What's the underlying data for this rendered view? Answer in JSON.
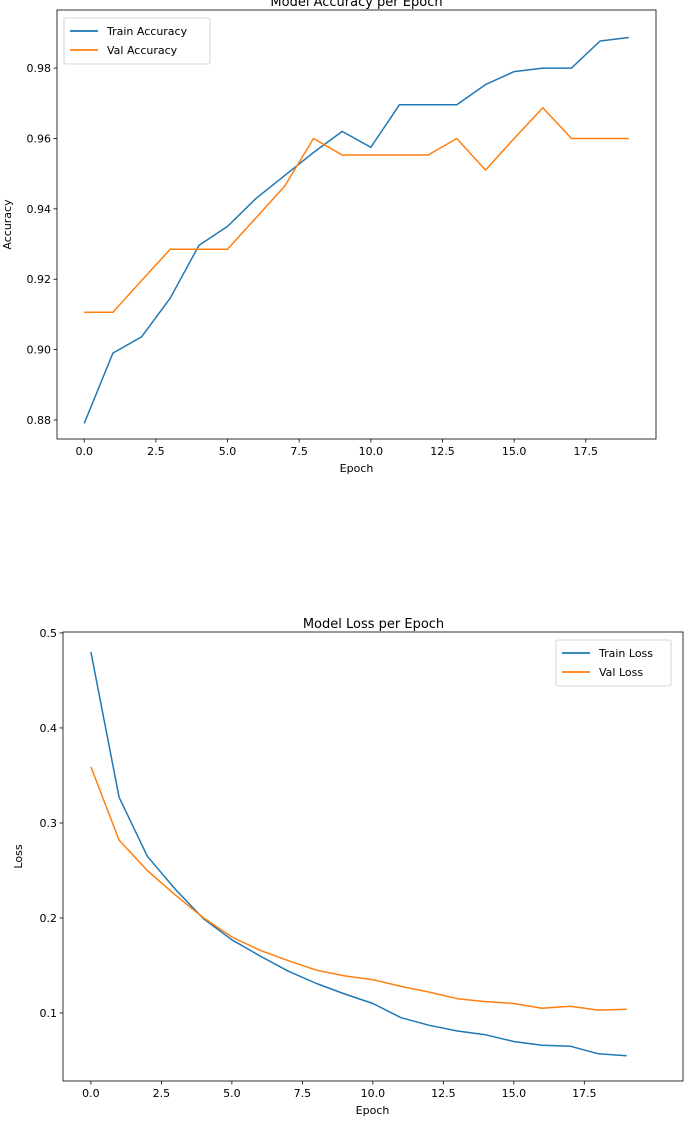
{
  "chart_data": [
    {
      "type": "line",
      "title": "Model Accuracy per Epoch",
      "xlabel": "Epoch",
      "ylabel": "Accuracy",
      "xlim": [
        -0.95,
        19.95
      ],
      "ylim": [
        0.8746,
        0.9965
      ],
      "xticks": [
        0,
        2.5,
        5,
        7.5,
        10,
        12.5,
        15,
        17.5
      ],
      "xtick_labels": [
        "0.0",
        "2.5",
        "5.0",
        "7.5",
        "10.0",
        "12.5",
        "15.0",
        "17.5"
      ],
      "yticks": [
        0.88,
        0.9,
        0.92,
        0.94,
        0.96,
        0.98
      ],
      "ytick_labels": [
        "0.88",
        "0.90",
        "0.92",
        "0.94",
        "0.96",
        "0.98"
      ],
      "grid": false,
      "legend_position": "top-left",
      "x": [
        0,
        1,
        2,
        3,
        4,
        5,
        6,
        7,
        8,
        9,
        10,
        11,
        12,
        13,
        14,
        15,
        16,
        17,
        18,
        19
      ],
      "series": [
        {
          "name": "Train Accuracy",
          "color": "#1f77b4",
          "values": [
            0.879,
            0.899,
            0.9036,
            0.9146,
            0.9296,
            0.935,
            0.943,
            0.9495,
            0.956,
            0.962,
            0.9575,
            0.9696,
            0.9696,
            0.9696,
            0.9753,
            0.979,
            0.98,
            0.98,
            0.9877,
            0.9887
          ]
        },
        {
          "name": "Val Accuracy",
          "color": "#ff7f0e",
          "values": [
            0.9106,
            0.9106,
            0.9196,
            0.9285,
            0.9285,
            0.9285,
            0.9375,
            0.9465,
            0.96,
            0.9553,
            0.9553,
            0.9553,
            0.9553,
            0.96,
            0.951,
            0.96,
            0.9687,
            0.96,
            0.96,
            0.96
          ]
        }
      ]
    },
    {
      "type": "line",
      "title": "Model Loss per Epoch",
      "xlabel": "Epoch",
      "ylabel": "Loss",
      "xlim": [
        -0.99,
        21.0
      ],
      "ylim": [
        0.0284,
        0.501
      ],
      "xticks": [
        0,
        2.5,
        5,
        7.5,
        10,
        12.5,
        15,
        17.5
      ],
      "xtick_labels": [
        "0.0",
        "2.5",
        "5.0",
        "7.5",
        "10.0",
        "12.5",
        "15.0",
        "17.5"
      ],
      "yticks": [
        0.1,
        0.2,
        0.3,
        0.4,
        0.5
      ],
      "ytick_labels": [
        "0.1",
        "0.2",
        "0.3",
        "0.4",
        "0.5"
      ],
      "grid": false,
      "legend_position": "top-right",
      "x": [
        0,
        1,
        2,
        3,
        4,
        5,
        6,
        7,
        8,
        9,
        10,
        11,
        12,
        13,
        14,
        15,
        16,
        17,
        18,
        19
      ],
      "series": [
        {
          "name": "Train Loss",
          "color": "#1f77b4",
          "values": [
            0.48,
            0.327,
            0.265,
            0.23,
            0.199,
            0.177,
            0.16,
            0.144,
            0.131,
            0.12,
            0.11,
            0.095,
            0.087,
            0.081,
            0.077,
            0.07,
            0.066,
            0.065,
            0.057,
            0.055
          ]
        },
        {
          "name": "Val Loss",
          "color": "#ff7f0e",
          "values": [
            0.359,
            0.282,
            0.25,
            0.224,
            0.2,
            0.18,
            0.166,
            0.155,
            0.145,
            0.139,
            0.135,
            0.128,
            0.122,
            0.115,
            0.112,
            0.11,
            0.105,
            0.107,
            0.103,
            0.104
          ]
        }
      ]
    }
  ]
}
